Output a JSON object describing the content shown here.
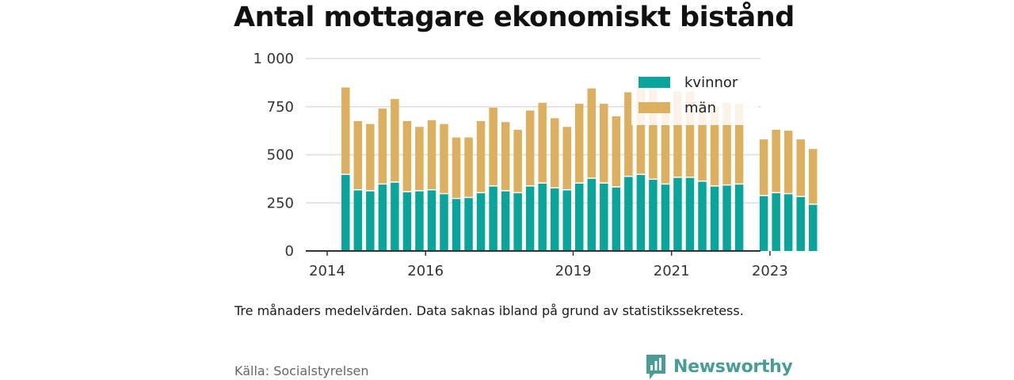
{
  "colors": {
    "kvinnor": "#0aa59a",
    "man": "#dcb05e",
    "grid": "#dddddd",
    "axis": "#333333",
    "brand": "#4a9d95"
  },
  "title": "Antal mottagare ekonomiskt bistånd",
  "note": "Tre månaders medelvärden. Data saknas ibland på grund av statistikssekretess.",
  "source": "Källa: Socialstyrelsen",
  "brand": {
    "name": "Newsworthy",
    "icon": "bar-chart-logo-icon"
  },
  "chart_data": {
    "type": "bar",
    "stacked": true,
    "title": "Antal mottagare ekonomiskt bistånd",
    "xlabel": "",
    "ylabel": "",
    "ylim": [
      0,
      1000
    ],
    "yticks": [
      0,
      250,
      500,
      750,
      1000
    ],
    "ytick_labels": [
      "0",
      "250",
      "500",
      "750",
      "1 000"
    ],
    "xticks": [
      {
        "label": "2014",
        "at": "2014-01"
      },
      {
        "label": "2016",
        "at": "2016-01"
      },
      {
        "label": "2019",
        "at": "2019-01"
      },
      {
        "label": "2021",
        "at": "2021-01"
      },
      {
        "label": "2023",
        "at": "2023-01"
      }
    ],
    "grid": true,
    "legend": "top-right",
    "categories": [
      "2014-04",
      "2014-07",
      "2014-10",
      "2015-01",
      "2015-04",
      "2015-07",
      "2015-10",
      "2016-01",
      "2016-04",
      "2016-07",
      "2016-10",
      "2017-01",
      "2017-04",
      "2017-07",
      "2017-10",
      "2018-01",
      "2018-04",
      "2018-07",
      "2018-10",
      "2019-01",
      "2019-04",
      "2019-07",
      "2019-10",
      "2020-01",
      "2020-04",
      "2020-07",
      "2020-10",
      "2021-01",
      "2021-04",
      "2021-07",
      "2021-10",
      "2022-01",
      "2022-04",
      "2022-07",
      "2022-10",
      "2023-01",
      "2023-04",
      "2023-07",
      "2023-10"
    ],
    "series": [
      {
        "name": "kvinnor",
        "values": [
          395,
          315,
          310,
          345,
          355,
          305,
          310,
          315,
          295,
          270,
          275,
          300,
          335,
          310,
          300,
          335,
          350,
          325,
          315,
          350,
          375,
          350,
          330,
          385,
          395,
          370,
          345,
          380,
          380,
          360,
          335,
          340,
          345,
          null,
          285,
          300,
          295,
          280,
          240
        ]
      },
      {
        "name": "män",
        "values": [
          455,
          360,
          350,
          395,
          435,
          370,
          335,
          365,
          365,
          320,
          315,
          375,
          410,
          360,
          330,
          395,
          420,
          365,
          330,
          415,
          470,
          415,
          370,
          440,
          480,
          480,
          405,
          450,
          450,
          420,
          415,
          430,
          420,
          null,
          295,
          330,
          330,
          300,
          290
        ]
      }
    ]
  }
}
